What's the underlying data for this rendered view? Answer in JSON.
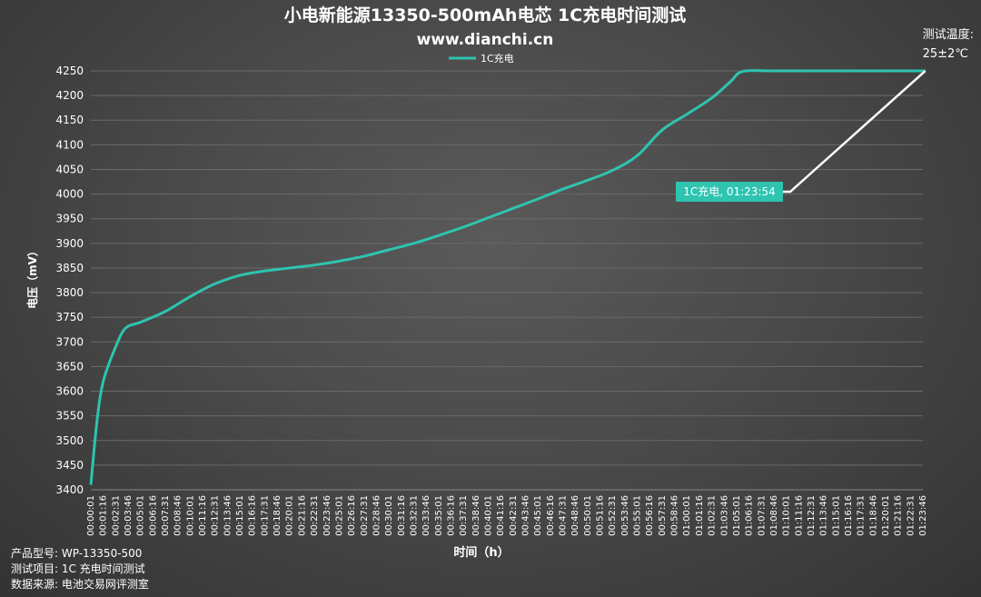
{
  "header": {
    "title": "小电新能源13350-500mAh电芯 1C充电时间测试",
    "subtitle": "www.dianchi.cn"
  },
  "note": {
    "label": "测试温度:",
    "value": "25±2℃"
  },
  "info": {
    "model": "产品型号: WP-13350-500",
    "item": "测试项目: 1C 充电时间测试",
    "source": "数据来源: 电池交易网评测室"
  },
  "colors": {
    "series": "#2ec4b0",
    "callout_bg": "#2ec4b0",
    "callout_line": "#ffffff",
    "grid": "#6a6a6a"
  },
  "chart_data": {
    "type": "line",
    "title": "小电新能源13350-500mAh电芯 1C充电时间测试",
    "xlabel": "时间（h）",
    "ylabel": "电压（mV）",
    "ylim": [
      3400,
      4250
    ],
    "yticks": [
      3400,
      3450,
      3500,
      3550,
      3600,
      3650,
      3700,
      3750,
      3800,
      3850,
      3900,
      3950,
      4000,
      4050,
      4100,
      4150,
      4200,
      4250
    ],
    "legend": "top-center",
    "grid": true,
    "x_labels": [
      "00:00:01",
      "00:01:16",
      "00:02:31",
      "00:03:46",
      "00:05:01",
      "00:06:16",
      "00:07:31",
      "00:08:46",
      "00:10:01",
      "00:11:16",
      "00:12:31",
      "00:13:46",
      "00:15:01",
      "00:16:16",
      "00:17:31",
      "00:18:46",
      "00:20:01",
      "00:21:16",
      "00:22:31",
      "00:23:46",
      "00:25:01",
      "00:26:16",
      "00:27:31",
      "00:28:46",
      "00:30:01",
      "00:31:16",
      "00:32:31",
      "00:33:46",
      "00:35:01",
      "00:36:16",
      "00:37:31",
      "00:38:46",
      "00:40:01",
      "00:41:16",
      "00:42:31",
      "00:43:46",
      "00:45:01",
      "00:46:16",
      "00:47:31",
      "00:48:46",
      "00:50:01",
      "00:51:16",
      "00:52:31",
      "00:53:46",
      "00:55:01",
      "00:56:16",
      "00:57:31",
      "00:58:46",
      "01:00:01",
      "01:01:16",
      "01:02:31",
      "01:03:46",
      "01:05:01",
      "01:06:16",
      "01:07:31",
      "01:08:46",
      "01:10:01",
      "01:11:16",
      "01:12:31",
      "01:13:46",
      "01:15:01",
      "01:16:16",
      "01:17:31",
      "01:18:46",
      "01:20:01",
      "01:21:16",
      "01:22:31",
      "01:23:46"
    ],
    "series": [
      {
        "name": "1C充电",
        "points": [
          [
            0,
            3410
          ],
          [
            0.5,
            3540
          ],
          [
            1,
            3620
          ],
          [
            2,
            3690
          ],
          [
            2.8,
            3728
          ],
          [
            4,
            3740
          ],
          [
            6,
            3762
          ],
          [
            8,
            3792
          ],
          [
            10,
            3818
          ],
          [
            12,
            3835
          ],
          [
            14,
            3844
          ],
          [
            16,
            3850
          ],
          [
            18,
            3856
          ],
          [
            20,
            3864
          ],
          [
            22,
            3874
          ],
          [
            24,
            3887
          ],
          [
            26,
            3900
          ],
          [
            28,
            3916
          ],
          [
            30,
            3933
          ],
          [
            32,
            3952
          ],
          [
            34,
            3971
          ],
          [
            36,
            3990
          ],
          [
            38,
            4010
          ],
          [
            40,
            4028
          ],
          [
            42,
            4048
          ],
          [
            44,
            4078
          ],
          [
            46,
            4130
          ],
          [
            48,
            4162
          ],
          [
            50,
            4195
          ],
          [
            51.5,
            4228
          ],
          [
            52.5,
            4249
          ],
          [
            55,
            4250
          ],
          [
            60,
            4250
          ],
          [
            67.2,
            4250
          ]
        ]
      }
    ],
    "annotation": {
      "text": "1C充电, 01:23:54",
      "x": 67.2,
      "y": 4250
    }
  }
}
